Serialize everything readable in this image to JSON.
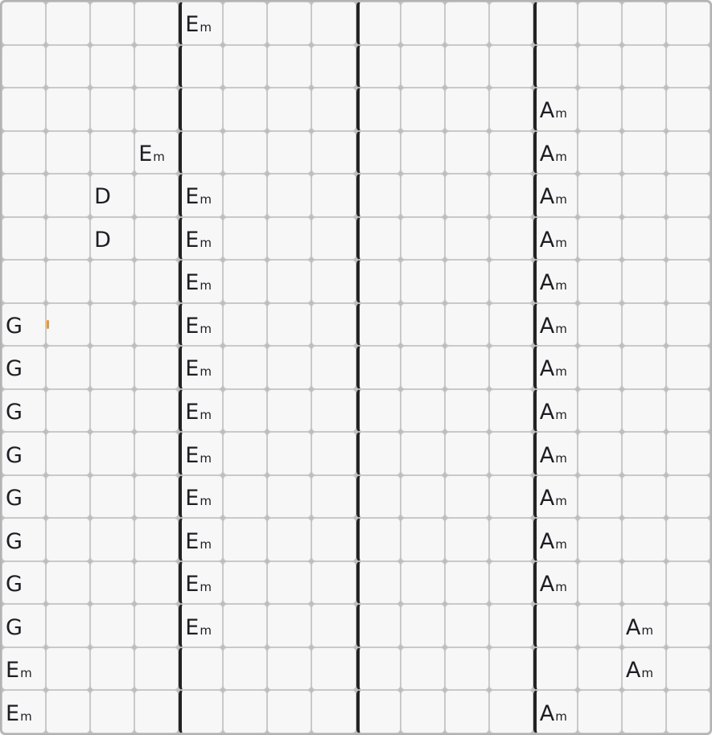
{
  "grid": {
    "columns": 16,
    "rows": 17,
    "barline_columns": [
      5,
      9,
      13
    ],
    "colors": {
      "grid_background": "#bdbdbd",
      "outer_border": "#b3b3b3",
      "cell_background": "#f7f7f7",
      "cell_border": "#c9c9c9",
      "barline": "#232323",
      "chord_text": "#1d1d24",
      "playhead": "#f2952d"
    },
    "playhead": {
      "row": 8,
      "column": 2
    },
    "chords": [
      {
        "row": 1,
        "col": 5,
        "label": "Em"
      },
      {
        "row": 3,
        "col": 13,
        "label": "Am"
      },
      {
        "row": 4,
        "col": 4,
        "label": "Em"
      },
      {
        "row": 4,
        "col": 13,
        "label": "Am"
      },
      {
        "row": 5,
        "col": 3,
        "label": "D"
      },
      {
        "row": 5,
        "col": 5,
        "label": "Em"
      },
      {
        "row": 5,
        "col": 13,
        "label": "Am"
      },
      {
        "row": 6,
        "col": 3,
        "label": "D"
      },
      {
        "row": 6,
        "col": 5,
        "label": "Em"
      },
      {
        "row": 6,
        "col": 13,
        "label": "Am"
      },
      {
        "row": 7,
        "col": 5,
        "label": "Em"
      },
      {
        "row": 7,
        "col": 13,
        "label": "Am"
      },
      {
        "row": 8,
        "col": 1,
        "label": "G"
      },
      {
        "row": 8,
        "col": 5,
        "label": "Em"
      },
      {
        "row": 8,
        "col": 13,
        "label": "Am"
      },
      {
        "row": 9,
        "col": 1,
        "label": "G"
      },
      {
        "row": 9,
        "col": 5,
        "label": "Em"
      },
      {
        "row": 9,
        "col": 13,
        "label": "Am"
      },
      {
        "row": 10,
        "col": 1,
        "label": "G"
      },
      {
        "row": 10,
        "col": 5,
        "label": "Em"
      },
      {
        "row": 10,
        "col": 13,
        "label": "Am"
      },
      {
        "row": 11,
        "col": 1,
        "label": "G"
      },
      {
        "row": 11,
        "col": 5,
        "label": "Em"
      },
      {
        "row": 11,
        "col": 13,
        "label": "Am"
      },
      {
        "row": 12,
        "col": 1,
        "label": "G"
      },
      {
        "row": 12,
        "col": 5,
        "label": "Em"
      },
      {
        "row": 12,
        "col": 13,
        "label": "Am"
      },
      {
        "row": 13,
        "col": 1,
        "label": "G"
      },
      {
        "row": 13,
        "col": 5,
        "label": "Em"
      },
      {
        "row": 13,
        "col": 13,
        "label": "Am"
      },
      {
        "row": 14,
        "col": 1,
        "label": "G"
      },
      {
        "row": 14,
        "col": 5,
        "label": "Em"
      },
      {
        "row": 14,
        "col": 13,
        "label": "Am"
      },
      {
        "row": 15,
        "col": 1,
        "label": "G"
      },
      {
        "row": 15,
        "col": 5,
        "label": "Em"
      },
      {
        "row": 15,
        "col": 15,
        "label": "Am"
      },
      {
        "row": 16,
        "col": 1,
        "label": "Em"
      },
      {
        "row": 16,
        "col": 15,
        "label": "Am"
      },
      {
        "row": 17,
        "col": 1,
        "label": "Em"
      },
      {
        "row": 17,
        "col": 13,
        "label": "Am"
      }
    ]
  }
}
